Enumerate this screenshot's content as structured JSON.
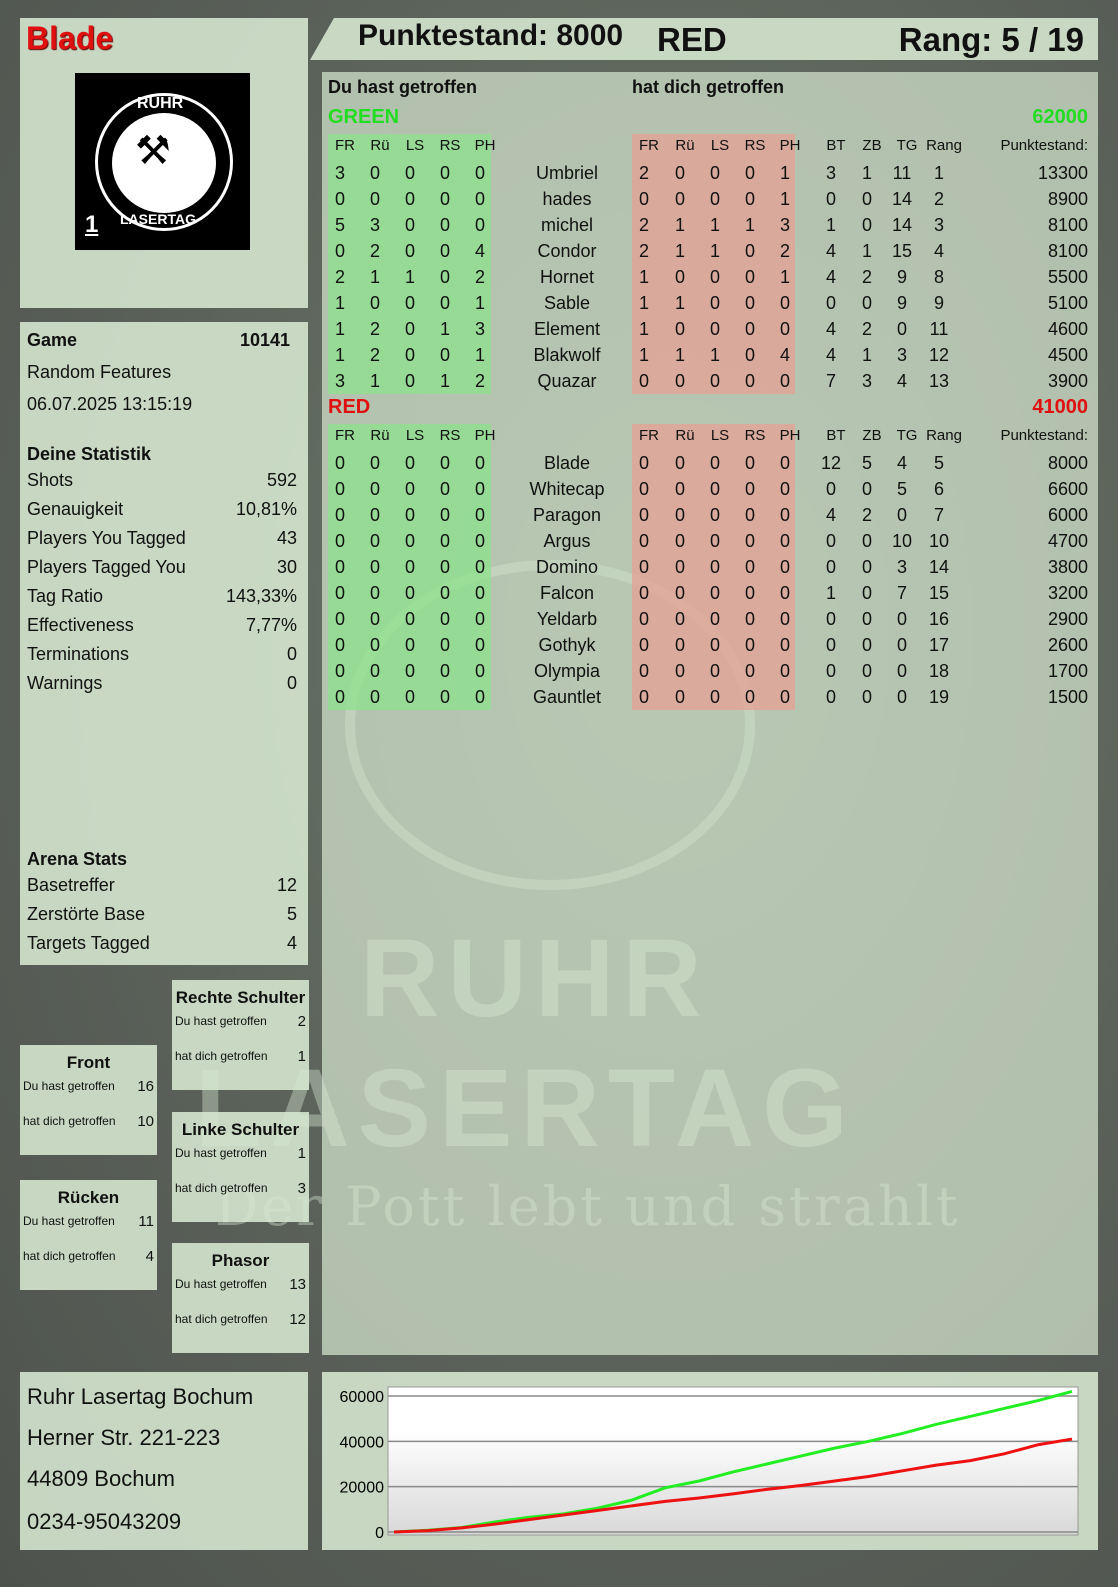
{
  "player": {
    "name": "Blade",
    "score_label": "Punktestand: 8000",
    "team": "RED",
    "rank_label": "Rang: 5 / 19"
  },
  "logo": {
    "top": "RUHR",
    "bottom": "LASERTAG",
    "number": "1"
  },
  "watermark": {
    "line1": "RUHR",
    "line2": "LASERTAG",
    "slogan": "Der Pott lebt und strahlt"
  },
  "table": {
    "you_hit": "Du hast getroffen",
    "hit_you": "hat dich getroffen",
    "hit_cols": [
      "FR",
      "Rü",
      "LS",
      "RS",
      "PH"
    ],
    "stat_cols": [
      "BT",
      "ZB",
      "TG",
      "Rang"
    ],
    "score_col": "Punktestand:",
    "teams": [
      {
        "name": "GREEN",
        "score": "62000",
        "color": "#22dd22",
        "players": [
          [
            "Umbriel",
            [
              3,
              0,
              0,
              0,
              0
            ],
            [
              2,
              0,
              0,
              0,
              1
            ],
            [
              3,
              1,
              11,
              1
            ],
            13300
          ],
          [
            "hades",
            [
              0,
              0,
              0,
              0,
              0
            ],
            [
              0,
              0,
              0,
              0,
              1
            ],
            [
              0,
              0,
              14,
              2
            ],
            8900
          ],
          [
            "michel",
            [
              5,
              3,
              0,
              0,
              0
            ],
            [
              2,
              1,
              1,
              1,
              3
            ],
            [
              1,
              0,
              14,
              3
            ],
            8100
          ],
          [
            "Condor",
            [
              0,
              2,
              0,
              0,
              4
            ],
            [
              2,
              1,
              1,
              0,
              2
            ],
            [
              4,
              1,
              15,
              4
            ],
            8100
          ],
          [
            "Hornet",
            [
              2,
              1,
              1,
              0,
              2
            ],
            [
              1,
              0,
              0,
              0,
              1
            ],
            [
              4,
              2,
              9,
              8
            ],
            5500
          ],
          [
            "Sable",
            [
              1,
              0,
              0,
              0,
              1
            ],
            [
              1,
              1,
              0,
              0,
              0
            ],
            [
              0,
              0,
              9,
              9
            ],
            5100
          ],
          [
            "Element",
            [
              1,
              2,
              0,
              1,
              3
            ],
            [
              1,
              0,
              0,
              0,
              0
            ],
            [
              4,
              2,
              0,
              11
            ],
            4600
          ],
          [
            "Blakwolf",
            [
              1,
              2,
              0,
              0,
              1
            ],
            [
              1,
              1,
              1,
              0,
              4
            ],
            [
              4,
              1,
              3,
              12
            ],
            4500
          ],
          [
            "Quazar",
            [
              3,
              1,
              0,
              1,
              2
            ],
            [
              0,
              0,
              0,
              0,
              0
            ],
            [
              7,
              3,
              4,
              13
            ],
            3900
          ]
        ]
      },
      {
        "name": "RED",
        "score": "41000",
        "color": "#e01010",
        "players": [
          [
            "Blade",
            [
              0,
              0,
              0,
              0,
              0
            ],
            [
              0,
              0,
              0,
              0,
              0
            ],
            [
              12,
              5,
              4,
              5
            ],
            8000
          ],
          [
            "Whitecap",
            [
              0,
              0,
              0,
              0,
              0
            ],
            [
              0,
              0,
              0,
              0,
              0
            ],
            [
              0,
              0,
              5,
              6
            ],
            6600
          ],
          [
            "Paragon",
            [
              0,
              0,
              0,
              0,
              0
            ],
            [
              0,
              0,
              0,
              0,
              0
            ],
            [
              4,
              2,
              0,
              7
            ],
            6000
          ],
          [
            "Argus",
            [
              0,
              0,
              0,
              0,
              0
            ],
            [
              0,
              0,
              0,
              0,
              0
            ],
            [
              0,
              0,
              10,
              10
            ],
            4700
          ],
          [
            "Domino",
            [
              0,
              0,
              0,
              0,
              0
            ],
            [
              0,
              0,
              0,
              0,
              0
            ],
            [
              0,
              0,
              3,
              14
            ],
            3800
          ],
          [
            "Falcon",
            [
              0,
              0,
              0,
              0,
              0
            ],
            [
              0,
              0,
              0,
              0,
              0
            ],
            [
              1,
              0,
              7,
              15
            ],
            3200
          ],
          [
            "Yeldarb",
            [
              0,
              0,
              0,
              0,
              0
            ],
            [
              0,
              0,
              0,
              0,
              0
            ],
            [
              0,
              0,
              0,
              16
            ],
            2900
          ],
          [
            "Gothyk",
            [
              0,
              0,
              0,
              0,
              0
            ],
            [
              0,
              0,
              0,
              0,
              0
            ],
            [
              0,
              0,
              0,
              17
            ],
            2600
          ],
          [
            "Olympia",
            [
              0,
              0,
              0,
              0,
              0
            ],
            [
              0,
              0,
              0,
              0,
              0
            ],
            [
              0,
              0,
              0,
              18
            ],
            1700
          ],
          [
            "Gauntlet",
            [
              0,
              0,
              0,
              0,
              0
            ],
            [
              0,
              0,
              0,
              0,
              0
            ],
            [
              0,
              0,
              0,
              19
            ],
            1500
          ]
        ]
      }
    ]
  },
  "game": {
    "label": "Game",
    "id": "10141",
    "mode": "Random Features",
    "datetime": "06.07.2025 13:15:19"
  },
  "stats": {
    "title": "Deine Statistik",
    "items": [
      {
        "label": "Shots",
        "value": "592"
      },
      {
        "label": "Genauigkeit",
        "value": "10,81%"
      },
      {
        "label": "Players You Tagged",
        "value": "43"
      },
      {
        "label": "Players Tagged You",
        "value": "30"
      },
      {
        "label": "Tag Ratio",
        "value": "143,33%"
      },
      {
        "label": "Effectiveness",
        "value": "7,77%"
      },
      {
        "label": "Terminations",
        "value": "0"
      },
      {
        "label": "Warnings",
        "value": "0"
      }
    ]
  },
  "arena": {
    "title": "Arena Stats",
    "items": [
      {
        "label": "Basetreffer",
        "value": "12"
      },
      {
        "label": "Zerstörte Base",
        "value": "5"
      },
      {
        "label": "Targets Tagged",
        "value": "4"
      }
    ]
  },
  "zones": [
    {
      "title": "Rechte Schulter",
      "you_hit_label": "Du hast getroffen",
      "you_hit": "2",
      "hit_you_label": "hat dich getroffen",
      "hit_you": "1"
    },
    {
      "title": "Front",
      "you_hit_label": "Du hast getroffen",
      "you_hit": "16",
      "hit_you_label": "hat dich getroffen",
      "hit_you": "10"
    },
    {
      "title": "Linke Schulter",
      "you_hit_label": "Du hast getroffen",
      "you_hit": "1",
      "hit_you_label": "hat dich getroffen",
      "hit_you": "3"
    },
    {
      "title": "Rücken",
      "you_hit_label": "Du hast getroffen",
      "you_hit": "11",
      "hit_you_label": "hat dich getroffen",
      "hit_you": "4"
    },
    {
      "title": "Phasor",
      "you_hit_label": "Du hast getroffen",
      "you_hit": "13",
      "hit_you_label": "hat dich getroffen",
      "hit_you": "12"
    }
  ],
  "address": {
    "name": "Ruhr Lasertag Bochum",
    "street": "Herner Str. 221-223",
    "city": "44809 Bochum",
    "phone": "0234-95043209"
  },
  "chart_data": {
    "type": "line",
    "title": "",
    "xlabel": "",
    "ylabel": "",
    "ylim": [
      0,
      62000
    ],
    "yticks": [
      0,
      20000,
      40000,
      60000
    ],
    "grid": true,
    "x": [
      0,
      1,
      2,
      3,
      4,
      5,
      6,
      7,
      8,
      9,
      10,
      11,
      12,
      13,
      14,
      15,
      16,
      17,
      18,
      19,
      20
    ],
    "series": [
      {
        "color": "#22ee22",
        "values": [
          0,
          800,
          2000,
          4500,
          6500,
          8000,
          10500,
          14000,
          19500,
          22500,
          26500,
          30000,
          33500,
          37000,
          40000,
          43500,
          47500,
          51000,
          54500,
          58000,
          62000
        ]
      },
      {
        "color": "#ee1111",
        "values": [
          0,
          600,
          1800,
          3500,
          5500,
          7500,
          9500,
          11500,
          13500,
          15000,
          16800,
          18800,
          20500,
          22500,
          24500,
          27000,
          29500,
          31500,
          34500,
          38500,
          41000
        ]
      }
    ]
  }
}
